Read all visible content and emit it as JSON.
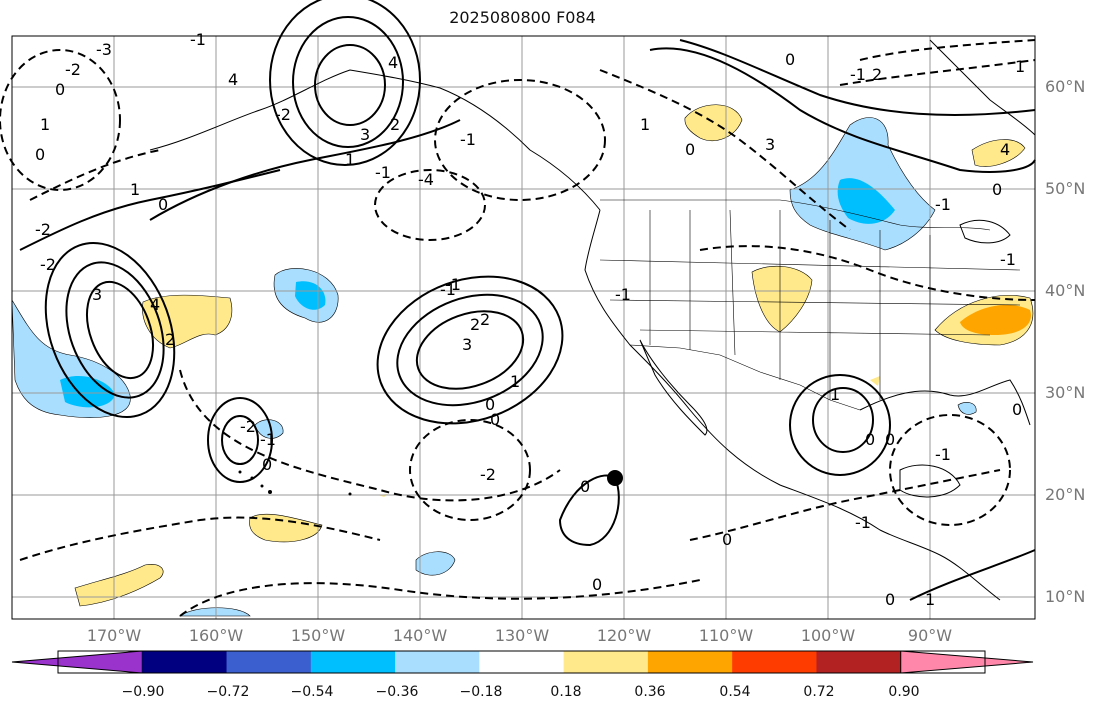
{
  "title": "2025080800 F084",
  "map": {
    "latitude_labels": [
      "60°N",
      "50°N",
      "40°N",
      "30°N",
      "20°N",
      "10°N"
    ],
    "longitude_labels": [
      "170°W",
      "160°W",
      "150°W",
      "140°W",
      "130°W",
      "120°W",
      "110°W",
      "100°W",
      "90°W"
    ],
    "contour_labels": {
      "pos": [
        "3",
        "2",
        "4",
        "1",
        "3",
        "2",
        "4",
        "1",
        "3",
        "2",
        "1",
        "2",
        "3",
        "4",
        "1",
        "2",
        "1",
        "1",
        "1",
        "1",
        "4"
      ],
      "neg": [
        "-2",
        "-1",
        "-1",
        "-1",
        "-2",
        "-1",
        "-2",
        "-1",
        "-4",
        "-2",
        "-3",
        "-2",
        "-1",
        "-1",
        "-1",
        "-1",
        "-2",
        "-1",
        "-1",
        "-1"
      ],
      "zero": [
        "0",
        "0",
        "0",
        "0",
        "0",
        "0",
        "0",
        "0",
        "0",
        "0",
        "0",
        "0",
        "0",
        "0",
        "0",
        "0"
      ]
    },
    "colors": {
      "light_blue": "#aadeff",
      "mid_blue": "#00bfff",
      "light_yellow": "#ffe98a",
      "orange": "#ffa500",
      "coast": "#000000",
      "grid": "#999999"
    }
  },
  "colorbar": {
    "colors": [
      "#9933cc",
      "#000080",
      "#3c5fd0",
      "#00bfff",
      "#aadeff",
      "#ffffff",
      "#ffe98a",
      "#ffa500",
      "#ff3c00",
      "#b22222",
      "#ff88aa"
    ],
    "tick_labels": [
      "−0.90",
      "−0.72",
      "−0.54",
      "−0.36",
      "−0.18",
      "0.18",
      "0.36",
      "0.54",
      "0.72",
      "0.90"
    ]
  }
}
